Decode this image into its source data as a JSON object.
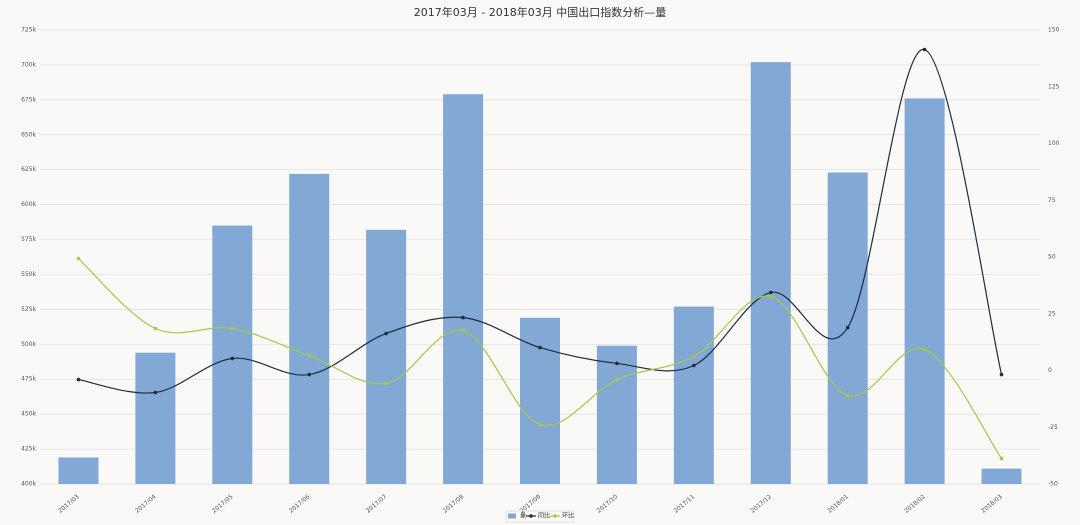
{
  "chart_data": {
    "type": "bar-line",
    "title": "2017年03月 - 2018年03月 中国出口指数分析—量",
    "categories": [
      "2017/03",
      "2017/04",
      "2017/05",
      "2017/06",
      "2017/07",
      "2017/08",
      "2017/09",
      "2017/10",
      "2017/11",
      "2017/12",
      "2018/01",
      "2018/02",
      "2018/03"
    ],
    "series": [
      {
        "name": "量",
        "type": "bar",
        "color": "#82a8d5",
        "values": [
          419000,
          494000,
          585000,
          622000,
          582000,
          679000,
          519000,
          499000,
          527000,
          702000,
          623000,
          676000,
          411000
        ]
      },
      {
        "name": "同比",
        "type": "line",
        "axis": "y2",
        "color": "#1f2d3d",
        "values": [
          -4,
          -9.7,
          5.3,
          -1.8,
          16.3,
          23.3,
          10.1,
          3.1,
          2.2,
          34.4,
          18.9,
          141.4,
          -1.8
        ]
      },
      {
        "name": "环比",
        "type": "line",
        "axis": "y2",
        "color": "#a8c84a",
        "values": [
          49.3,
          18.5,
          18.5,
          6.6,
          -5.7,
          17.6,
          -23.8,
          -4,
          6.2,
          32.6,
          -11,
          9.3,
          -38.8
        ]
      }
    ],
    "ylim": [
      400000,
      725000
    ],
    "yticks": [
      {
        "value": 400000,
        "label": "400k"
      },
      {
        "value": 425000,
        "label": "425k"
      },
      {
        "value": 450000,
        "label": "450k"
      },
      {
        "value": 475000,
        "label": "475k"
      },
      {
        "value": 500000,
        "label": "500k"
      },
      {
        "value": 525000,
        "label": "525k"
      },
      {
        "value": 550000,
        "label": "550k"
      },
      {
        "value": 575000,
        "label": "575k"
      },
      {
        "value": 600000,
        "label": "600k"
      },
      {
        "value": 625000,
        "label": "625k"
      },
      {
        "value": 650000,
        "label": "650k"
      },
      {
        "value": 675000,
        "label": "675k"
      },
      {
        "value": 700000,
        "label": "700k"
      },
      {
        "value": 725000,
        "label": "725k"
      }
    ],
    "y2lim": [
      -50,
      150
    ],
    "y2ticks": [
      -50,
      -25,
      0,
      25,
      50,
      75,
      100,
      125,
      150
    ],
    "grid": true
  }
}
